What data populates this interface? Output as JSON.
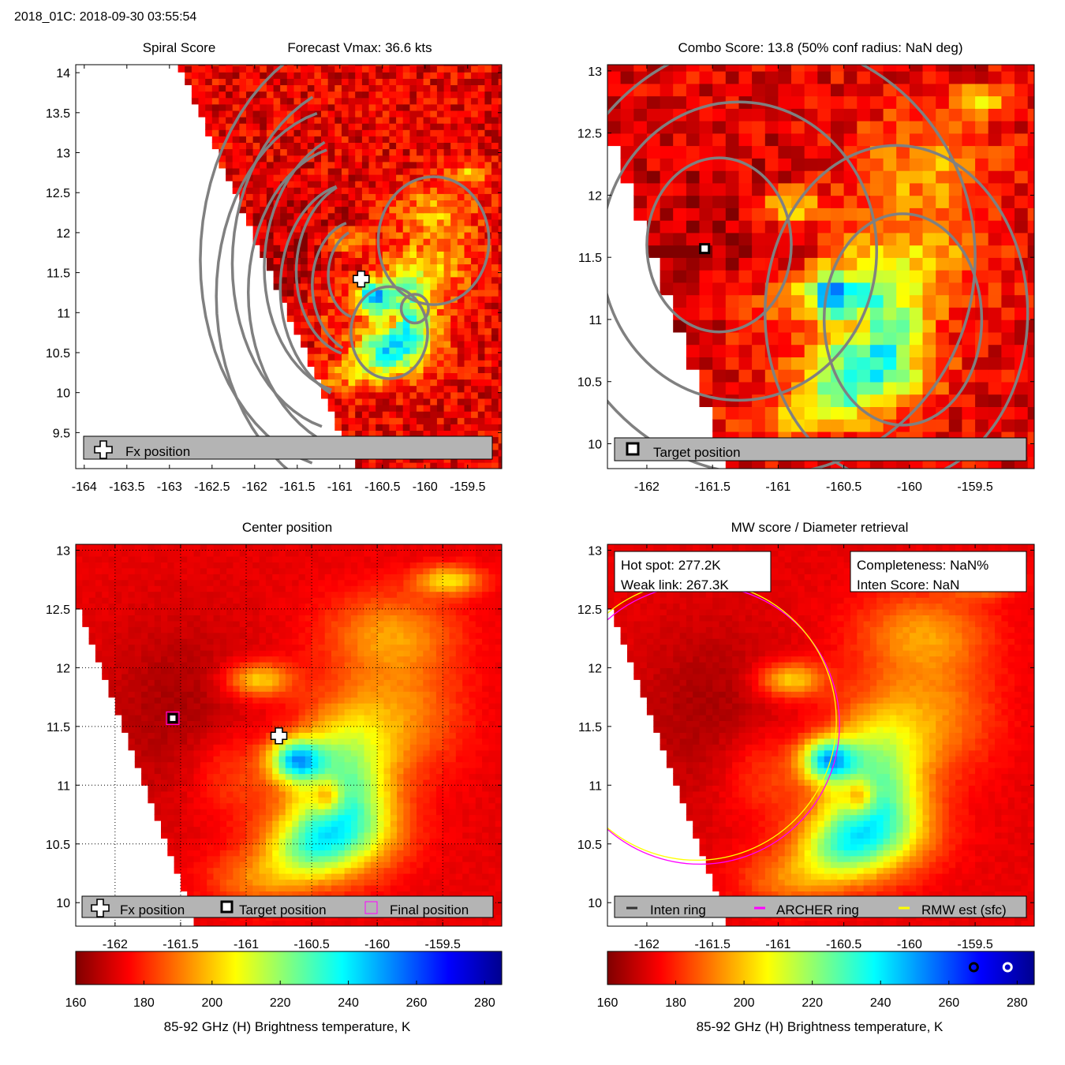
{
  "figure_title": "2018_01C: 2018-09-30 03:55:54",
  "colors": {
    "contour": "#808080",
    "legend_bg": "#b4b4b4",
    "archer_ring": "#ff00ff",
    "rmw_ring": "#ffff00",
    "inten_ring": "#333333"
  },
  "chart_data": [
    {
      "id": "spiral",
      "type": "heatmap",
      "title_left": "Spiral Score",
      "title_right": "Forecast Vmax: 36.6 kts",
      "xlim": [
        -164.1,
        -159.1
      ],
      "ylim": [
        9.05,
        14.1
      ],
      "xticks": [
        "-164",
        "-163.5",
        "-163",
        "-162.5",
        "-162",
        "-161.5",
        "-161",
        "-160.5",
        "-160",
        "-159.5"
      ],
      "xtick_values": [
        -164,
        -163.5,
        -163,
        -162.5,
        -162,
        -161.5,
        -161,
        -160.5,
        -160,
        -159.5
      ],
      "yticks": [
        "9.5",
        "10",
        "10.5",
        "11",
        "11.5",
        "12",
        "12.5",
        "13",
        "13.5",
        "14"
      ],
      "ytick_values": [
        9.5,
        10,
        10.5,
        11,
        11.5,
        12,
        12.5,
        13,
        13.5,
        14
      ],
      "legend": [
        "Fx position"
      ],
      "fx_position": {
        "lon": -160.75,
        "lat": 11.42
      }
    },
    {
      "id": "combo",
      "type": "heatmap",
      "title": "Combo Score: 13.8  (50% conf radius: NaN deg)",
      "xlim": [
        -162.3,
        -159.05
      ],
      "ylim": [
        9.8,
        13.05
      ],
      "xticks": [
        "-162",
        "-161.5",
        "-161",
        "-160.5",
        "-160",
        "-159.5"
      ],
      "xtick_values": [
        -162,
        -161.5,
        -161,
        -160.5,
        -160,
        -159.5
      ],
      "yticks": [
        "10",
        "10.5",
        "11",
        "11.5",
        "12",
        "12.5",
        "13"
      ],
      "ytick_values": [
        10,
        10.5,
        11,
        11.5,
        12,
        12.5,
        13
      ],
      "legend": [
        "Target position"
      ],
      "target_position": {
        "lon": -161.56,
        "lat": 11.57
      }
    },
    {
      "id": "center",
      "type": "heatmap",
      "title": "Center position",
      "xlim": [
        -162.3,
        -159.05
      ],
      "ylim": [
        9.8,
        13.05
      ],
      "xticks": [
        "-162",
        "-161.5",
        "-161",
        "-160.5",
        "-160",
        "-159.5"
      ],
      "xtick_values": [
        -162,
        -161.5,
        -161,
        -160.5,
        -160,
        -159.5
      ],
      "yticks": [
        "10",
        "10.5",
        "11",
        "11.5",
        "12",
        "12.5",
        "13"
      ],
      "ytick_values": [
        10,
        10.5,
        11,
        11.5,
        12,
        12.5,
        13
      ],
      "grid": true,
      "legend": [
        "Fx position",
        "Target position",
        "Final position"
      ],
      "fx_position": {
        "lon": -160.75,
        "lat": 11.42
      },
      "target_position": {
        "lon": -161.56,
        "lat": 11.57
      },
      "colorbar": {
        "label": "85-92 GHz (H) Brightness temperature, K",
        "ticks": [
          "160",
          "180",
          "200",
          "220",
          "240",
          "260",
          "280"
        ],
        "tick_values": [
          160,
          180,
          200,
          220,
          240,
          260,
          280
        ],
        "range": [
          160,
          285
        ]
      }
    },
    {
      "id": "mwscore",
      "type": "heatmap",
      "title": "MW score / Diameter retrieval",
      "xlim": [
        -162.3,
        -159.05
      ],
      "ylim": [
        9.8,
        13.05
      ],
      "xticks": [
        "-162",
        "-161.5",
        "-161",
        "-160.5",
        "-160",
        "-159.5"
      ],
      "xtick_values": [
        -162,
        -161.5,
        -161,
        -160.5,
        -160,
        -159.5
      ],
      "yticks": [
        "10",
        "10.5",
        "11",
        "11.5",
        "12",
        "12.5",
        "13"
      ],
      "ytick_values": [
        10,
        10.5,
        11,
        11.5,
        12,
        12.5,
        13
      ],
      "hot_spot": "Hot spot: 277.2K",
      "weak_link": "Weak link: 267.3K",
      "completeness": "Completeness: NaN%",
      "inten_score": "Inten Score: NaN",
      "legend": [
        "Inten ring",
        "ARCHER ring",
        "RMW est (sfc)"
      ],
      "ring_center": {
        "lon": -161.56,
        "lat": 11.57
      },
      "colorbar": {
        "label": "85-92 GHz (H) Brightness temperature, K",
        "ticks": [
          "160",
          "180",
          "200",
          "220",
          "240",
          "260",
          "280"
        ],
        "tick_values": [
          160,
          180,
          200,
          220,
          240,
          260,
          280
        ],
        "range": [
          160,
          285
        ],
        "markers": [
          {
            "value": 267.3,
            "style": "black"
          },
          {
            "value": 277.2,
            "style": "white"
          }
        ]
      }
    }
  ]
}
